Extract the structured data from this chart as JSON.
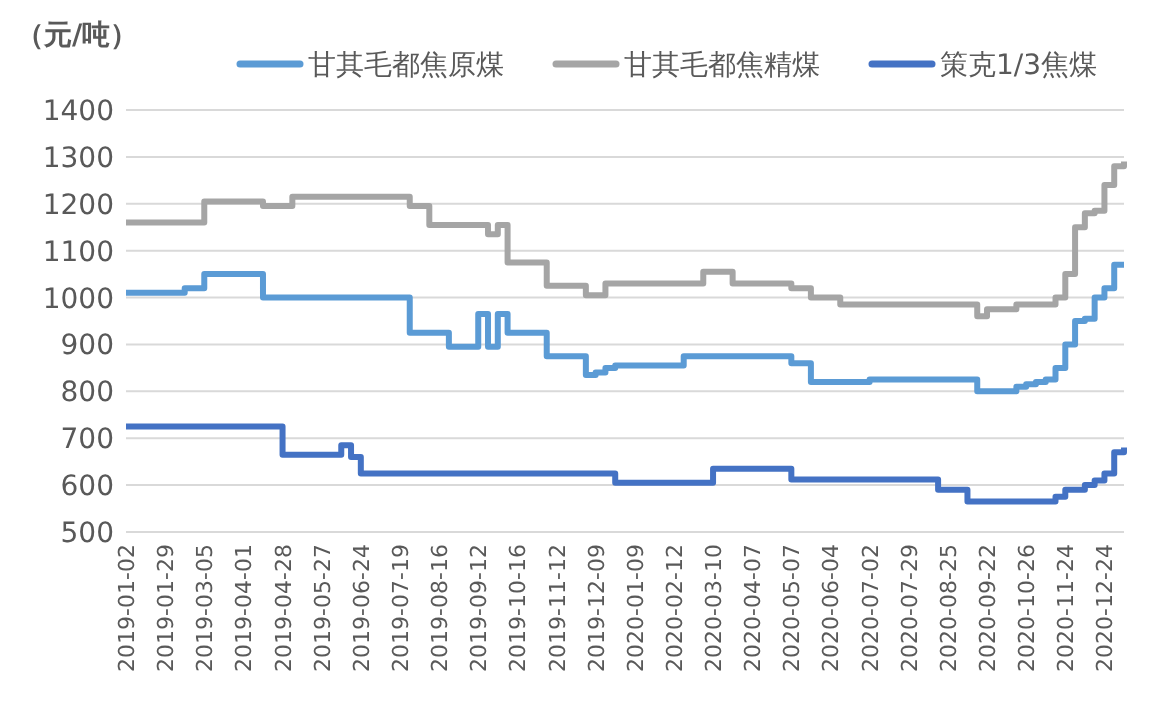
{
  "chart_data": {
    "type": "step",
    "ylabel": "（元/吨）",
    "ylim": [
      500,
      1400
    ],
    "yticks": [
      500,
      600,
      700,
      800,
      900,
      1000,
      1100,
      1200,
      1300,
      1400
    ],
    "grid": "y",
    "legend": "top",
    "categories": [
      "2019-01-02",
      null,
      null,
      null,
      "2019-01-29",
      null,
      null,
      null,
      "2019-03-05",
      null,
      null,
      null,
      "2019-04-01",
      null,
      null,
      null,
      "2019-04-28",
      null,
      null,
      null,
      "2019-05-27",
      null,
      null,
      null,
      "2019-06-24",
      null,
      null,
      null,
      "2019-07-19",
      null,
      null,
      null,
      "2019-08-16",
      null,
      null,
      null,
      "2019-09-12",
      null,
      null,
      null,
      "2019-10-16",
      null,
      null,
      null,
      "2019-11-12",
      null,
      null,
      null,
      "2019-12-09",
      null,
      null,
      null,
      "2020-01-09",
      null,
      null,
      null,
      "2020-02-12",
      null,
      null,
      null,
      "2020-03-10",
      null,
      null,
      null,
      "2020-04-07",
      null,
      null,
      null,
      "2020-05-07",
      null,
      null,
      null,
      "2020-06-04",
      null,
      null,
      null,
      "2020-07-02",
      null,
      null,
      null,
      "2020-07-29",
      null,
      null,
      null,
      "2020-08-25",
      null,
      null,
      null,
      "2020-09-22",
      null,
      null,
      null,
      "2020-10-26",
      null,
      null,
      null,
      "2020-11-24",
      null,
      null,
      null,
      "2020-12-24",
      null,
      null
    ],
    "series": [
      {
        "name": "甘其毛都焦原煤",
        "color": "#5b9bd5",
        "values": [
          1010,
          1010,
          1010,
          1010,
          1010,
          1010,
          1020,
          1020,
          1050,
          1050,
          1050,
          1050,
          1050,
          1050,
          1000,
          1000,
          1000,
          1000,
          1000,
          1000,
          1000,
          1000,
          1000,
          1000,
          1000,
          1000,
          1000,
          1000,
          1000,
          925,
          925,
          925,
          925,
          895,
          895,
          895,
          965,
          895,
          965,
          925,
          925,
          925,
          925,
          875,
          875,
          875,
          875,
          835,
          840,
          850,
          855,
          855,
          855,
          855,
          855,
          855,
          855,
          875,
          875,
          875,
          875,
          875,
          875,
          875,
          875,
          875,
          875,
          875,
          860,
          860,
          820,
          820,
          820,
          820,
          820,
          820,
          825,
          825,
          825,
          825,
          825,
          825,
          825,
          825,
          825,
          825,
          825,
          800,
          800,
          800,
          800,
          810,
          815,
          820,
          825,
          850,
          900,
          950,
          955,
          1000,
          1020,
          1070,
          1070
        ]
      },
      {
        "name": "甘其毛都焦精煤",
        "color": "#a5a5a5",
        "values": [
          1160,
          1160,
          1160,
          1160,
          1160,
          1160,
          1160,
          1160,
          1205,
          1205,
          1205,
          1205,
          1205,
          1205,
          1195,
          1195,
          1195,
          1215,
          1215,
          1215,
          1215,
          1215,
          1215,
          1215,
          1215,
          1215,
          1215,
          1215,
          1215,
          1195,
          1195,
          1155,
          1155,
          1155,
          1155,
          1155,
          1155,
          1135,
          1155,
          1075,
          1075,
          1075,
          1075,
          1025,
          1025,
          1025,
          1025,
          1005,
          1005,
          1030,
          1030,
          1030,
          1030,
          1030,
          1030,
          1030,
          1030,
          1030,
          1030,
          1055,
          1055,
          1055,
          1030,
          1030,
          1030,
          1030,
          1030,
          1030,
          1020,
          1020,
          1000,
          1000,
          1000,
          985,
          985,
          985,
          985,
          985,
          985,
          985,
          985,
          985,
          985,
          985,
          985,
          985,
          985,
          960,
          975,
          975,
          975,
          985,
          985,
          985,
          985,
          1000,
          1050,
          1150,
          1180,
          1185,
          1240,
          1280,
          1290
        ]
      },
      {
        "name": "策克1/3焦煤",
        "color": "#4472c4",
        "values": [
          725,
          725,
          725,
          725,
          725,
          725,
          725,
          725,
          725,
          725,
          725,
          725,
          725,
          725,
          725,
          725,
          665,
          665,
          665,
          665,
          665,
          665,
          685,
          660,
          625,
          625,
          625,
          625,
          625,
          625,
          625,
          625,
          625,
          625,
          625,
          625,
          625,
          625,
          625,
          625,
          625,
          625,
          625,
          625,
          625,
          625,
          625,
          625,
          625,
          625,
          605,
          605,
          605,
          605,
          605,
          605,
          605,
          605,
          605,
          605,
          635,
          635,
          635,
          635,
          635,
          635,
          635,
          635,
          612,
          612,
          612,
          612,
          612,
          612,
          612,
          612,
          612,
          612,
          612,
          612,
          612,
          612,
          612,
          590,
          590,
          590,
          565,
          565,
          565,
          565,
          565,
          565,
          565,
          565,
          565,
          575,
          590,
          590,
          600,
          610,
          625,
          670,
          680
        ]
      }
    ]
  }
}
